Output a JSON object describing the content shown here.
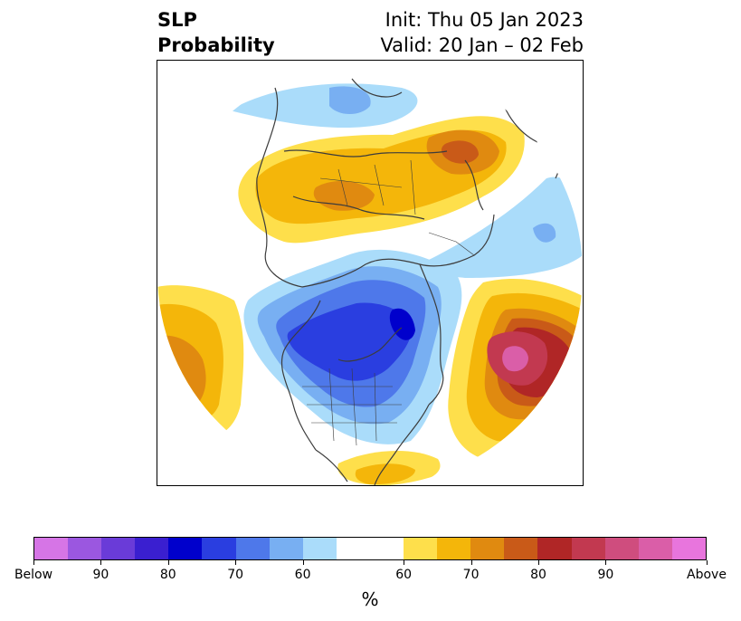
{
  "title": {
    "variable": "SLP",
    "subtitle": "Probability",
    "init": "Init: Thu 05 Jan 2023",
    "valid": "Valid: 20 Jan – 02 Feb"
  },
  "colorbar": {
    "unit": "%",
    "colors": [
      "#d675e6",
      "#9b57e0",
      "#6a3bd8",
      "#3a1fd0",
      "#0000cc",
      "#2a3ee0",
      "#4e78ea",
      "#78aff2",
      "#aadcfa",
      "#ffffff",
      "#ffffff",
      "#fedf4b",
      "#f4b60a",
      "#e08a10",
      "#c95a18",
      "#b02626",
      "#c23950",
      "#cf4d7e",
      "#da5ea8",
      "#e875dd"
    ],
    "tick_labels": [
      "Below",
      "90",
      "80",
      "70",
      "60",
      "60",
      "70",
      "80",
      "90",
      "Above"
    ]
  }
}
